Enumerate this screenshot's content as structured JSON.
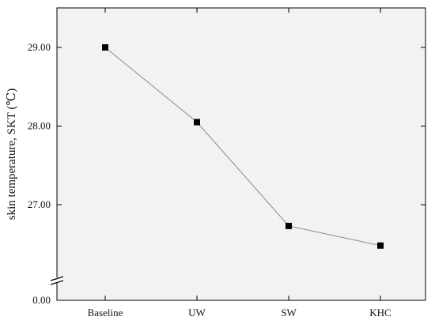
{
  "chart_data": {
    "type": "line",
    "title": "",
    "xlabel": "",
    "ylabel": "skin temperature, SKT (℃)",
    "categories": [
      "Baseline",
      "UW",
      "SW",
      "KHC"
    ],
    "series": [
      {
        "values": [
          29.0,
          28.05,
          26.73,
          26.48
        ]
      }
    ],
    "y_ticks": [
      "29.00",
      "28.00",
      "27.00",
      "0.00"
    ],
    "ylim": [
      26.0,
      29.5
    ],
    "y_axis_break": true,
    "grid": false,
    "marker": "square",
    "colors": {
      "line": "#8c8c8c",
      "marker": "#000000",
      "plot_background": "#f2f2f2",
      "axis": "#000000"
    }
  }
}
